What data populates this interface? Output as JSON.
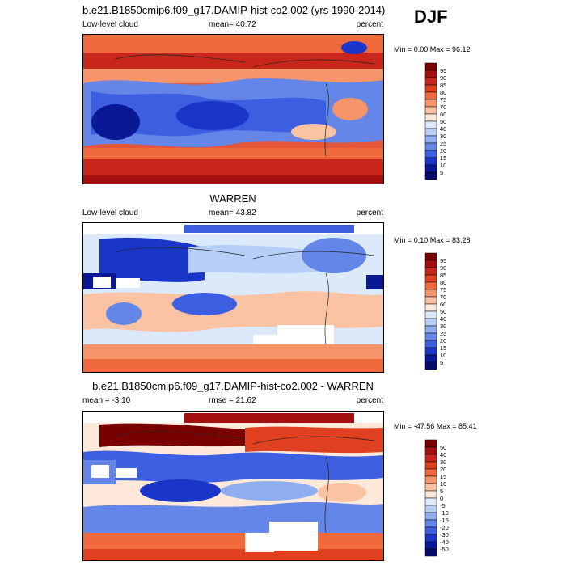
{
  "season": "DJF",
  "panels": [
    {
      "title": "b.e21.B1850cmip6.f09_g17.DAMIP-hist-co2.002 (yrs 1990-2014)",
      "left_label": "Low-level cloud",
      "center_label": "mean=  40.72",
      "right_label": "percent",
      "minmax": "Min =   0.00 Max =  96.12",
      "colorbar": {
        "labels": [
          "95",
          "90",
          "85",
          "80",
          "75",
          "70",
          "60",
          "50",
          "40",
          "30",
          "25",
          "20",
          "15",
          "10",
          "5"
        ],
        "colors": [
          "#7a0000",
          "#a50f0f",
          "#c8261a",
          "#e0401f",
          "#f06a3c",
          "#f7956a",
          "#fbc3a3",
          "#fde8da",
          "#dce9fb",
          "#b7cff7",
          "#8eaef0",
          "#6486e8",
          "#3c5ee0",
          "#1a36c8",
          "#0a1896",
          "#050a6a"
        ]
      }
    },
    {
      "title": "WARREN",
      "left_label": "Low-level cloud",
      "center_label": "mean=  43.82",
      "right_label": "percent",
      "minmax": "Min =   0.10 Max =  83.28",
      "colorbar": {
        "labels": [
          "95",
          "90",
          "85",
          "80",
          "75",
          "70",
          "60",
          "50",
          "40",
          "30",
          "25",
          "20",
          "15",
          "10",
          "5"
        ],
        "colors": [
          "#7a0000",
          "#a50f0f",
          "#c8261a",
          "#e0401f",
          "#f06a3c",
          "#f7956a",
          "#fbc3a3",
          "#fde8da",
          "#dce9fb",
          "#b7cff7",
          "#8eaef0",
          "#6486e8",
          "#3c5ee0",
          "#1a36c8",
          "#0a1896",
          "#050a6a"
        ]
      }
    },
    {
      "title": "b.e21.B1850cmip6.f09_g17.DAMIP-hist-co2.002 - WARREN",
      "left_label": "mean =  -3.10",
      "center_label": "rmse =  21.62",
      "right_label": "percent",
      "minmax": "Min = -47.56 Max =  85.41",
      "colorbar": {
        "labels": [
          "50",
          "40",
          "30",
          "20",
          "15",
          "10",
          "5",
          "0",
          "-5",
          "-10",
          "-15",
          "-20",
          "-30",
          "-40",
          "-50"
        ],
        "colors": [
          "#7a0000",
          "#a50f0f",
          "#c8261a",
          "#e0401f",
          "#f06a3c",
          "#f7956a",
          "#fbc3a3",
          "#fde8da",
          "#dce9fb",
          "#b7cff7",
          "#8eaef0",
          "#6486e8",
          "#3c5ee0",
          "#1a36c8",
          "#0a1896",
          "#050a6a"
        ]
      }
    }
  ]
}
